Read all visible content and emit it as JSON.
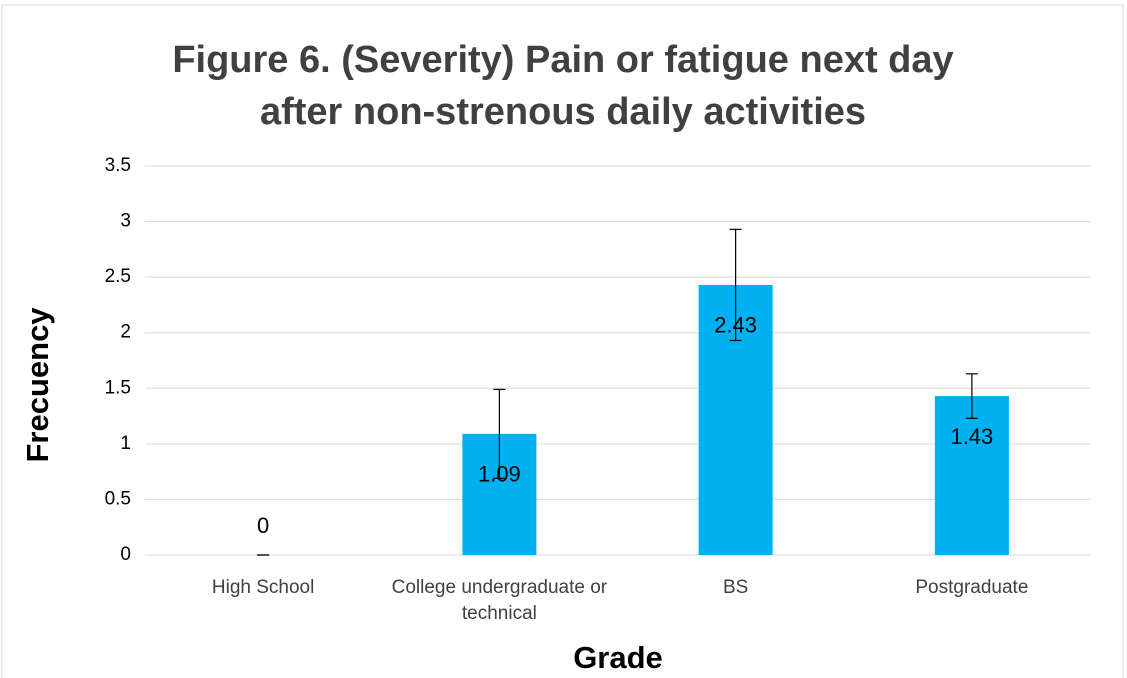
{
  "chart_data": {
    "type": "bar",
    "title": "Figure 6. (Severity) Pain or fatigue next day after non-strenous daily activities",
    "x_label": "Grade",
    "y_label": "Frecuency",
    "categories": [
      "High School",
      "College undergraduate or technical",
      "BS",
      "Postgraduate"
    ],
    "values": [
      0,
      1.09,
      2.43,
      1.43
    ],
    "errors": [
      0,
      0.4,
      0.5,
      0.2
    ],
    "color": "#00b0f0",
    "ylim": [
      0,
      3.5
    ],
    "yticks": [
      0,
      0.5,
      1,
      1.5,
      2,
      2.5,
      3,
      3.5
    ],
    "grid": true
  }
}
